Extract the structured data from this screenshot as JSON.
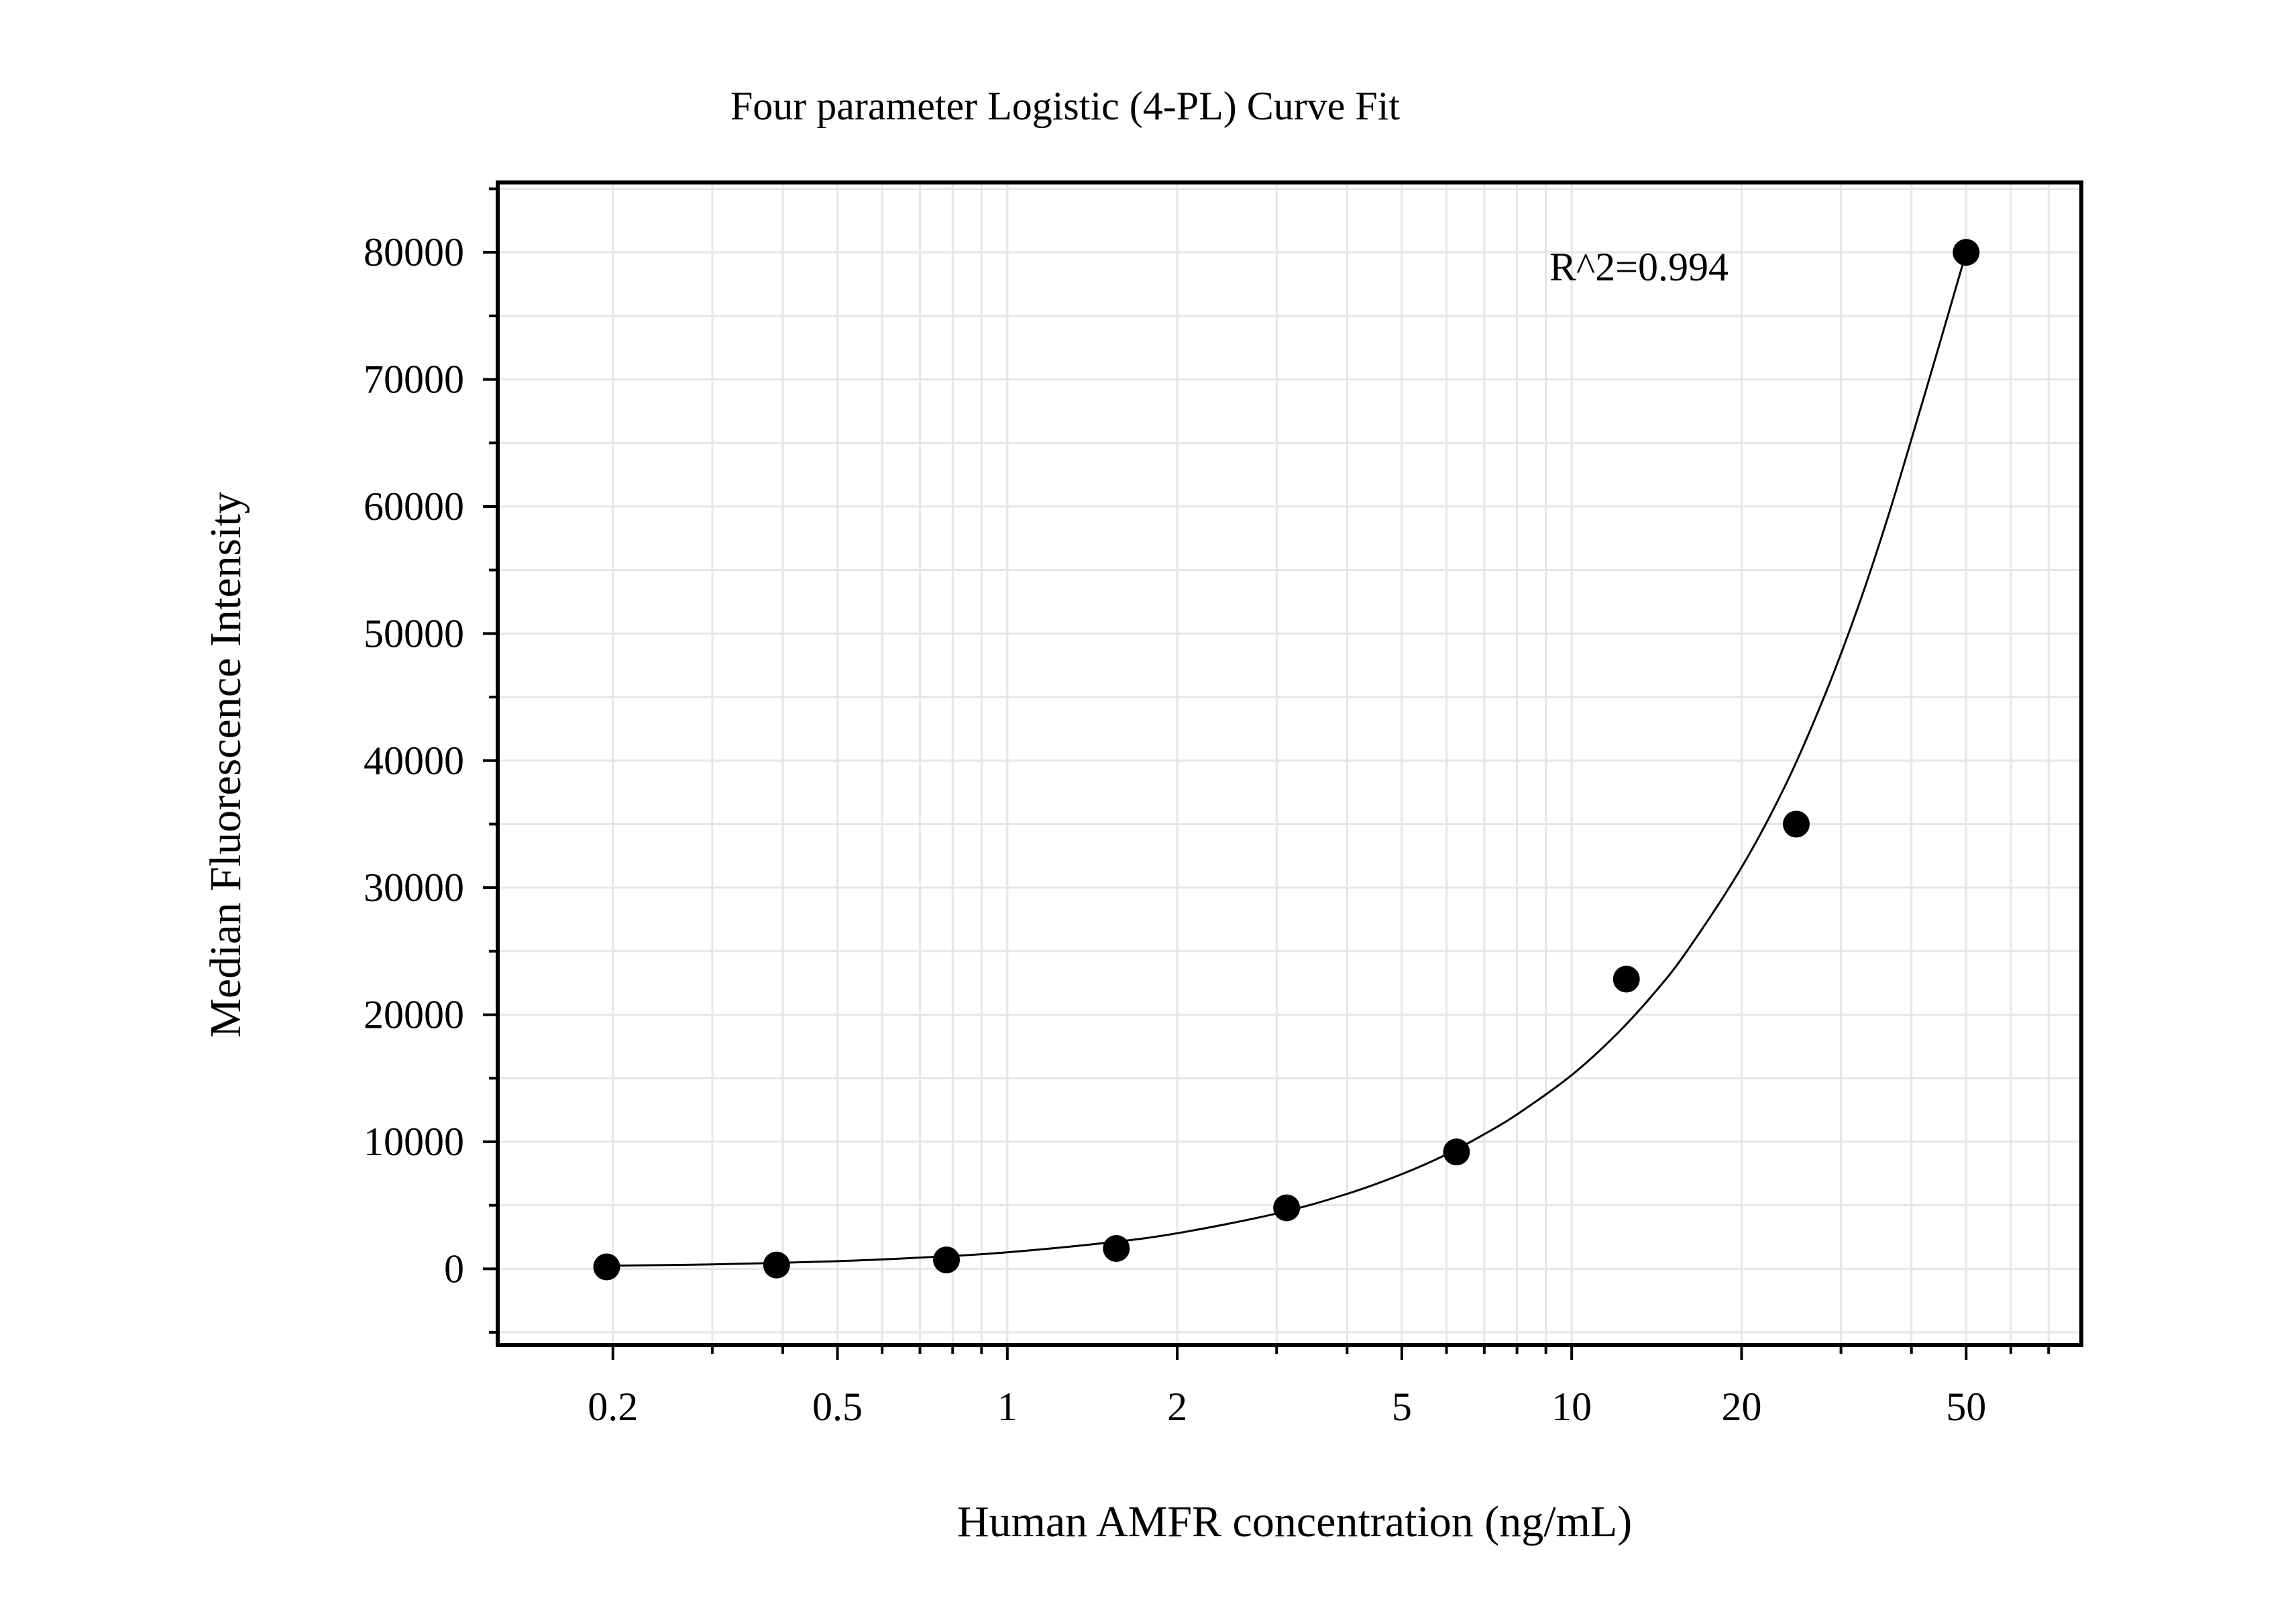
{
  "chart_data": {
    "type": "scatter",
    "title": "Four parameter Logistic (4-PL) Curve Fit",
    "xlabel": "Human AMFR concentration (ng/mL)",
    "ylabel": "Median Fluorescence Intensity",
    "x_scale": "log",
    "xlim": [
      0.125,
      80
    ],
    "ylim": [
      -6000,
      85500
    ],
    "x_ticks": [
      0.2,
      0.5,
      1,
      2,
      5,
      10,
      20,
      50
    ],
    "x_tick_labels": [
      "0.2",
      "0.5",
      "1",
      "2",
      "5",
      "10",
      "20",
      "50"
    ],
    "y_ticks": [
      0,
      10000,
      20000,
      30000,
      40000,
      50000,
      60000,
      70000,
      80000
    ],
    "y_tick_labels": [
      "0",
      "10000",
      "20000",
      "30000",
      "40000",
      "50000",
      "60000",
      "70000",
      "80000"
    ],
    "grid": true,
    "annotation": "R^2=0.994",
    "series": [
      {
        "kind": "points",
        "x": [
          0.195,
          0.39,
          0.78,
          1.56,
          3.125,
          6.25,
          12.5,
          25,
          50
        ],
        "y": [
          150,
          300,
          700,
          1600,
          4800,
          9200,
          22800,
          35000,
          80000
        ]
      },
      {
        "kind": "fit_curve",
        "x": [
          0.2,
          0.3,
          0.5,
          0.75,
          1,
          1.5,
          2,
          3,
          4,
          5,
          6,
          7,
          8,
          10,
          12,
          14,
          16,
          20,
          24,
          28,
          32,
          36,
          40,
          45,
          50
        ],
        "y": [
          250,
          350,
          600,
          950,
          1300,
          2050,
          2800,
          4350,
          5900,
          7450,
          9000,
          10600,
          12150,
          15250,
          18450,
          21700,
          25000,
          31600,
          38200,
          45000,
          51800,
          58600,
          65300,
          73000,
          80000
        ]
      }
    ],
    "colors": {
      "points": "#000000",
      "curve": "#000000",
      "grid": "#e6e6e6",
      "frame": "#000000"
    }
  }
}
